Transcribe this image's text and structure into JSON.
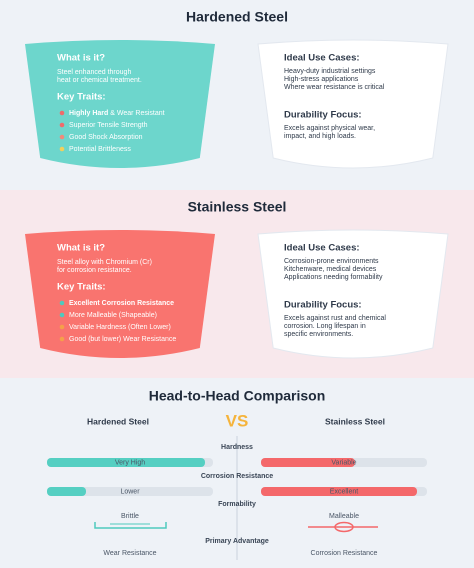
{
  "sections": [
    {
      "title": "Hardened Steel",
      "what_title": "What is it?",
      "what_text": [
        "Steel enhanced through",
        "heat or chemical treatment."
      ],
      "traits_title": "Key Traits:",
      "traits": [
        {
          "strong": "Highly Hard",
          "rest": " & Wear Resistant",
          "dot_color": "#f06b6b"
        },
        {
          "rest": "Superior Tensile Strength",
          "dot_color": "#f06b6b"
        },
        {
          "rest": "Good Shock Absorption",
          "dot_color": "#f08a7a"
        },
        {
          "rest": "Potential Brittleness",
          "dot_color": "#f2d05a"
        }
      ],
      "use_title": "Ideal Use Cases:",
      "use_text": [
        "Heavy-duty industrial settings",
        "High-stress applications",
        "Where wear resistance is critical"
      ],
      "durability_title": "Durability Focus:",
      "durability_text": [
        "Excels against physical wear,",
        "impact, and high loads."
      ],
      "cup_color": "#6dd6cc",
      "background": "#eef2f7"
    },
    {
      "title": "Stainless Steel",
      "what_title": "What is it?",
      "what_text": [
        "Steel alloy with Chromium (Cr)",
        "for corrosion resistance."
      ],
      "traits_title": "Key Traits:",
      "traits": [
        {
          "strong": "Excellent Corrosion Resistance",
          "rest": "",
          "dot_color": "#4fc9bd"
        },
        {
          "rest": "More Malleable (Shapeable)",
          "dot_color": "#4fc9bd"
        },
        {
          "rest": "Variable Hardness (Often Lower)",
          "dot_color": "#f5a04a"
        },
        {
          "rest": "Good (but lower) Wear Resistance",
          "dot_color": "#f5a04a"
        }
      ],
      "use_title": "Ideal Use Cases:",
      "use_text": [
        "Corrosion-prone environments",
        "Kitchenware, medical devices",
        "Applications needing formability"
      ],
      "durability_title": "Durability Focus:",
      "durability_text": [
        "Excels against rust and chemical",
        "corrosion. Long lifespan in",
        "specific environments."
      ],
      "cup_color": "#f9746f",
      "background": "#f8e8ec"
    }
  ],
  "comparison": {
    "title": "Head-to-Head Comparison",
    "left_title": "Hardened Steel",
    "vs": "VS",
    "right_title": "Stainless Steel",
    "rows": [
      {
        "label": "Hardness",
        "left": "Very High",
        "right": "Variable"
      },
      {
        "label": "Corrosion Resistance",
        "left": "Lower",
        "right": "Excellent"
      },
      {
        "label": "Formability",
        "left": "Brittle",
        "right": "Malleable"
      },
      {
        "label": "Primary Advantage",
        "left": "Wear Resistance",
        "right": "Corrosion Resistance"
      }
    ]
  }
}
